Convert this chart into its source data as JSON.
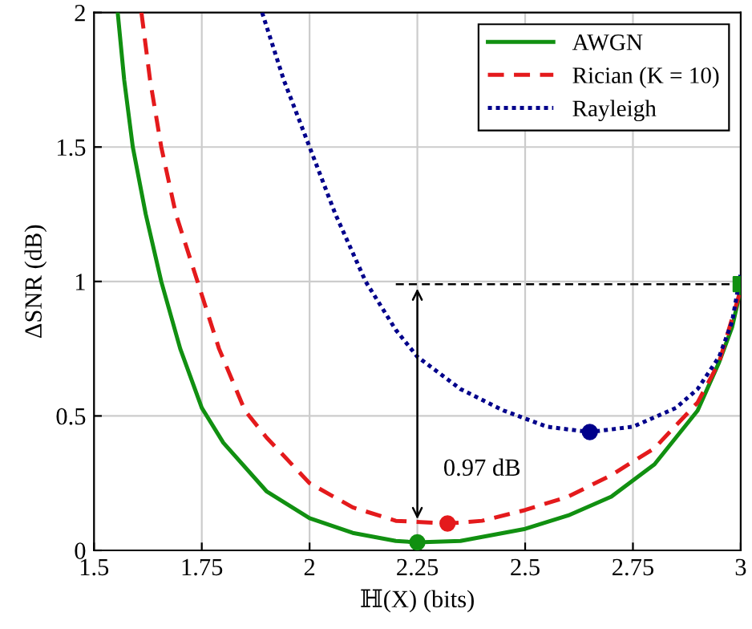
{
  "chart_data": {
    "type": "line",
    "xlabel": "ℍ(X) (bits)",
    "ylabel": "ΔSNR (dB)",
    "xlim": [
      1.5,
      3
    ],
    "ylim": [
      0,
      2
    ],
    "xticks": [
      1.5,
      1.75,
      2,
      2.25,
      2.5,
      2.75,
      3
    ],
    "yticks": [
      0,
      0.5,
      1,
      1.5,
      2
    ],
    "grid": true,
    "legend": "top right",
    "series": [
      {
        "name": "AWGN",
        "color": "#119011",
        "line_style": "solid",
        "x": [
          1.555,
          1.57,
          1.59,
          1.62,
          1.656,
          1.7,
          1.75,
          1.8,
          1.9,
          2.0,
          2.1,
          2.2,
          2.25,
          2.35,
          2.5,
          2.6,
          2.7,
          2.8,
          2.9,
          2.95,
          2.98,
          3.0
        ],
        "values": [
          2,
          1.75,
          1.5,
          1.25,
          1.0,
          0.75,
          0.53,
          0.4,
          0.22,
          0.12,
          0.065,
          0.035,
          0.03,
          0.035,
          0.08,
          0.13,
          0.2,
          0.32,
          0.52,
          0.7,
          0.83,
          0.97
        ]
      },
      {
        "name": "Rician (K = 10)",
        "color": "#e41a1c",
        "line_style": "dashed",
        "x": [
          1.61,
          1.63,
          1.656,
          1.69,
          1.74,
          1.79,
          1.85,
          1.9,
          2.0,
          2.1,
          2.2,
          2.32,
          2.4,
          2.5,
          2.6,
          2.7,
          2.8,
          2.9,
          2.95,
          3.0
        ],
        "values": [
          2,
          1.75,
          1.5,
          1.25,
          1.0,
          0.75,
          0.52,
          0.42,
          0.25,
          0.16,
          0.11,
          0.1,
          0.11,
          0.15,
          0.2,
          0.28,
          0.38,
          0.55,
          0.7,
          0.97
        ]
      },
      {
        "name": "Rayleigh",
        "color": "#00008b",
        "line_style": "dotted",
        "x": [
          1.89,
          1.94,
          2.0,
          2.06,
          2.13,
          2.2,
          2.25,
          2.35,
          2.45,
          2.55,
          2.65,
          2.75,
          2.85,
          2.9,
          2.95,
          2.98,
          3.0
        ],
        "values": [
          2,
          1.75,
          1.5,
          1.25,
          1.0,
          0.82,
          0.72,
          0.6,
          0.52,
          0.46,
          0.44,
          0.46,
          0.53,
          0.6,
          0.72,
          0.85,
          1.03
        ]
      },
      {
        "type": "line",
        "color": "#000000",
        "line_style": "dashed",
        "x": [
          2.2,
          3.0
        ],
        "values": [
          0.99,
          0.99
        ]
      },
      {
        "type": "scatter",
        "color": "#119011",
        "marker": "circle",
        "x": [
          2.25
        ],
        "values": [
          0.03
        ]
      },
      {
        "type": "scatter",
        "color": "#e41a1c",
        "marker": "circle",
        "x": [
          2.32
        ],
        "values": [
          0.1
        ]
      },
      {
        "type": "scatter",
        "color": "#00008b",
        "marker": "circle",
        "x": [
          2.65
        ],
        "values": [
          0.44
        ]
      },
      {
        "type": "scatter",
        "color": "#119011",
        "marker": "square",
        "x": [
          3.0
        ],
        "values": [
          0.99
        ]
      }
    ],
    "annotations": [
      "0.97 dB"
    ]
  }
}
